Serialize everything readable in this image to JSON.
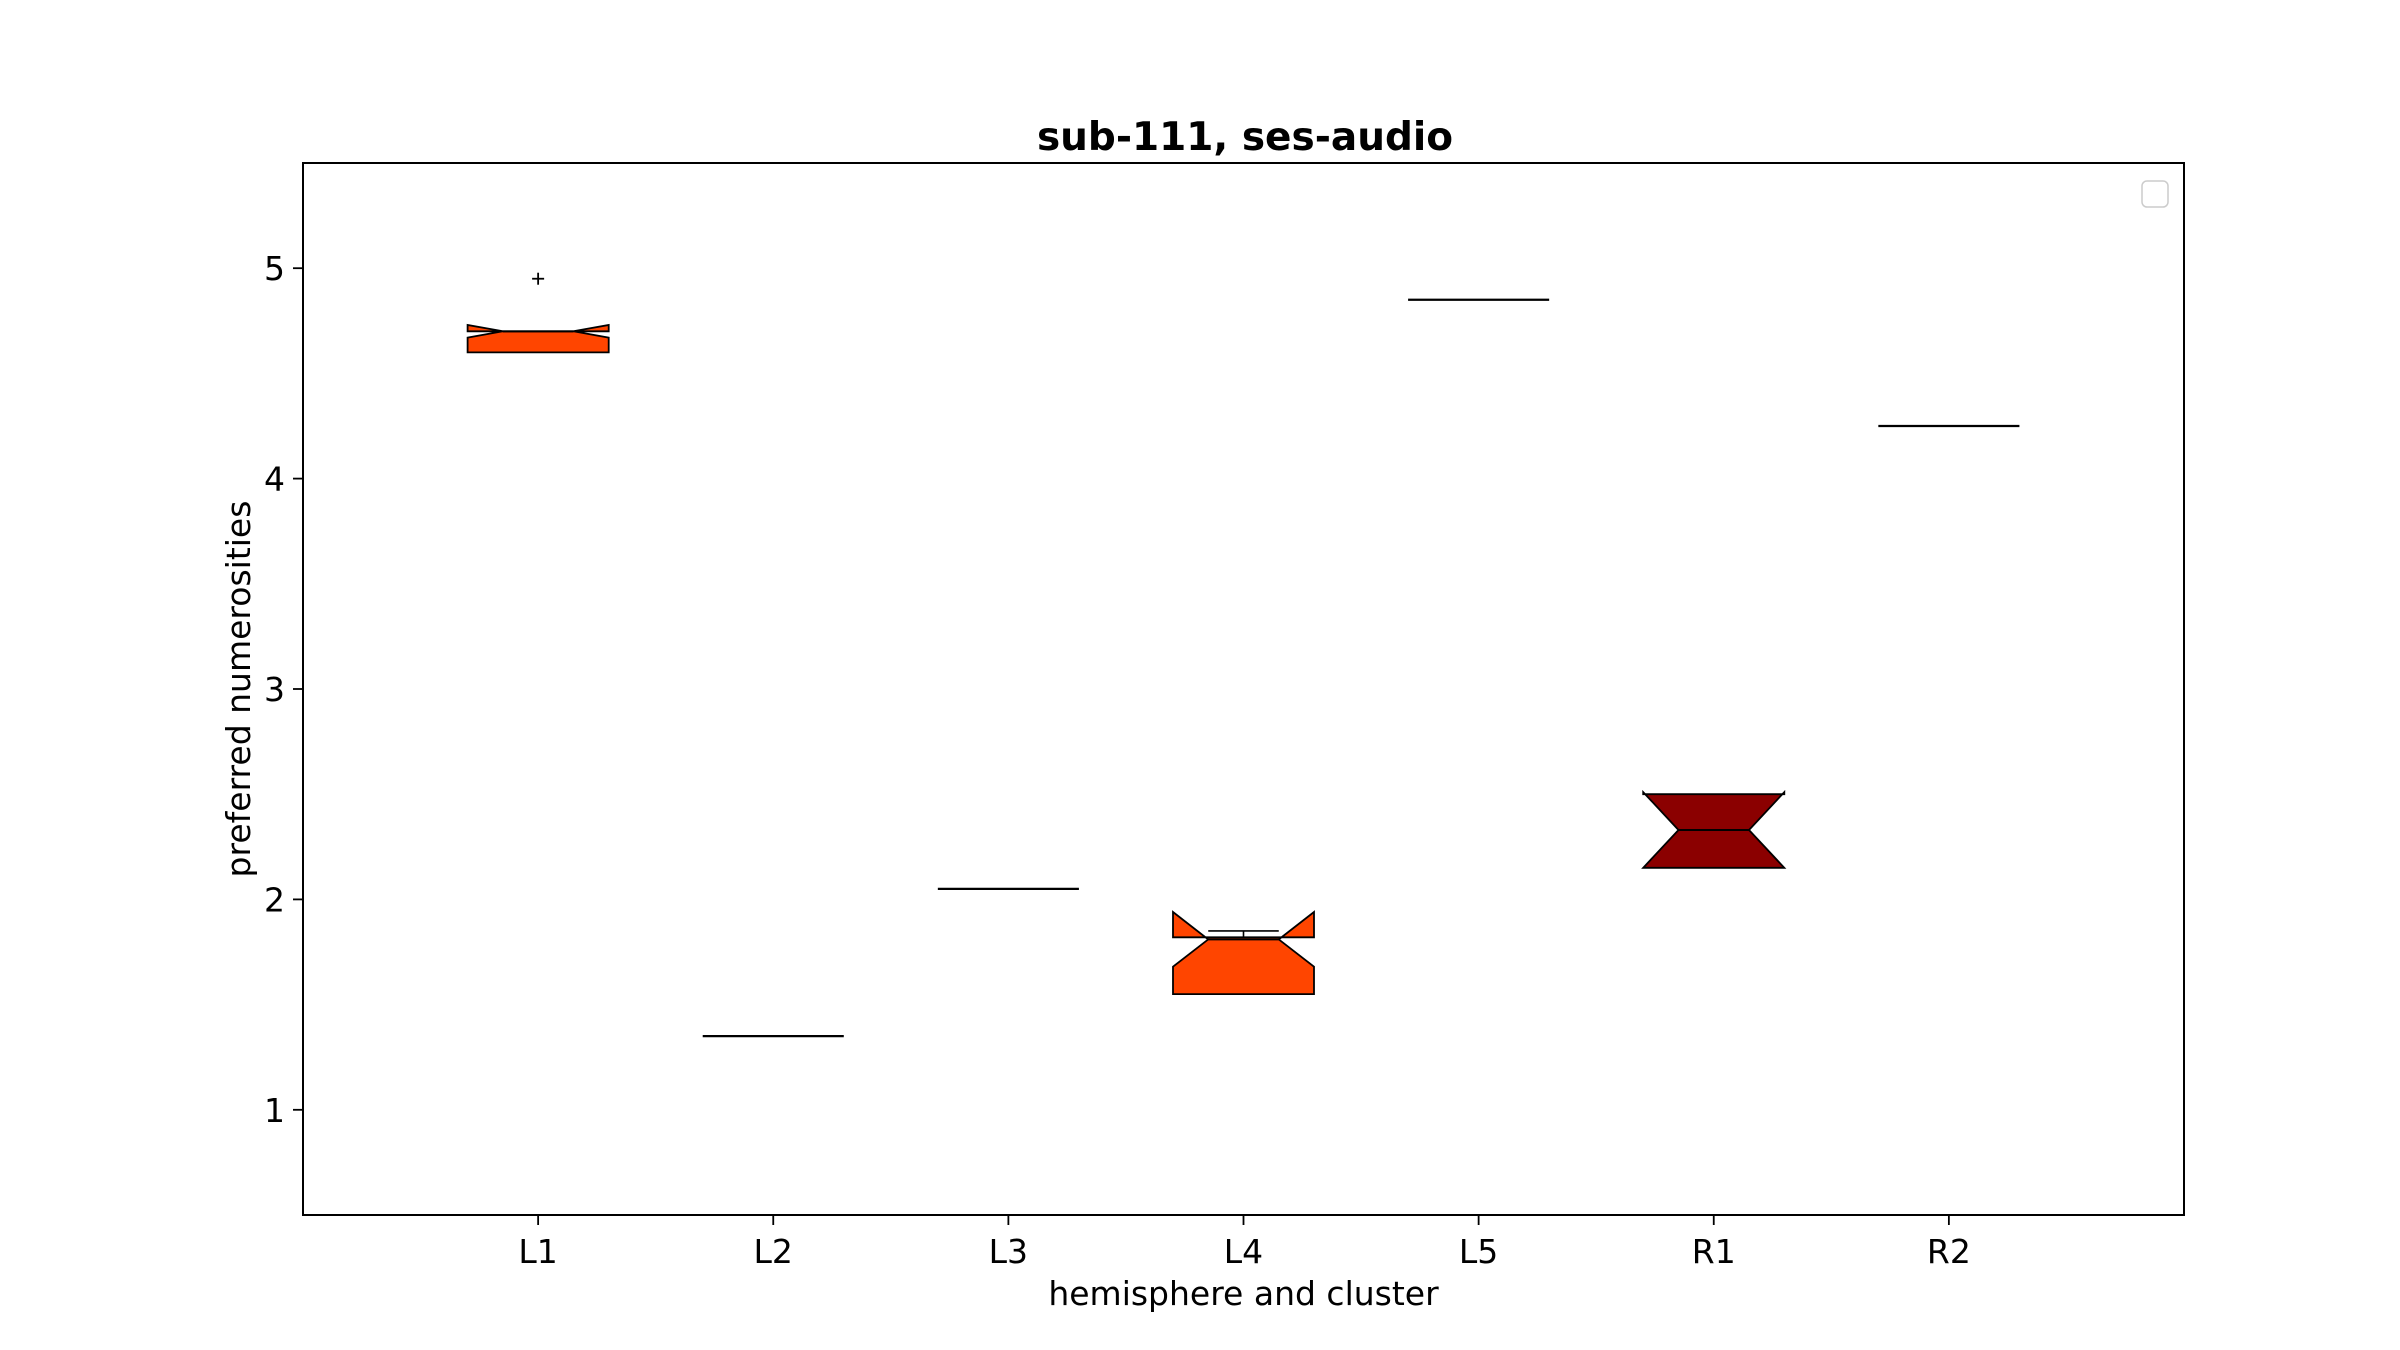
{
  "chart_data": {
    "type": "box",
    "title": "sub-111, ses-audio",
    "xlabel": "hemisphere and cluster",
    "ylabel": "preferred numerosities",
    "categories": [
      "L1",
      "L2",
      "L3",
      "L4",
      "L5",
      "R1",
      "R2"
    ],
    "ylim": [
      0.5,
      5.5
    ],
    "yticks": [
      1,
      2,
      3,
      4,
      5
    ],
    "grid": false,
    "legend": "top-right (empty)",
    "notched": true,
    "boxes": [
      {
        "category": "L1",
        "q1": 4.6,
        "median": 4.7,
        "q3": 4.7,
        "notch_low": 4.67,
        "notch_high": 4.73,
        "whisker_low": 4.6,
        "whisker_high": 4.7,
        "outliers": [
          4.95
        ],
        "color": "#FF4500"
      },
      {
        "category": "L2",
        "q1": 1.35,
        "median": 1.35,
        "q3": 1.35,
        "whisker_low": 1.35,
        "whisker_high": 1.35,
        "outliers": [],
        "color": "#FF4500"
      },
      {
        "category": "L3",
        "q1": 2.05,
        "median": 2.05,
        "q3": 2.05,
        "whisker_low": 2.05,
        "whisker_high": 2.05,
        "outliers": [],
        "color": "#FF4500"
      },
      {
        "category": "L4",
        "q1": 1.55,
        "median": 1.81,
        "q3": 1.82,
        "notch_low": 1.68,
        "notch_high": 1.94,
        "whisker_low": 1.55,
        "whisker_high": 1.85,
        "outliers": [],
        "color": "#FF4500"
      },
      {
        "category": "L5",
        "q1": 4.85,
        "median": 4.85,
        "q3": 4.85,
        "whisker_low": 4.85,
        "whisker_high": 4.85,
        "outliers": [],
        "color": "#FF4500"
      },
      {
        "category": "R1",
        "q1": 2.15,
        "median": 2.33,
        "q3": 2.5,
        "notch_low": 2.15,
        "notch_high": 2.51,
        "whisker_low": 2.15,
        "whisker_high": 2.5,
        "outliers": [],
        "color": "#8B0000"
      },
      {
        "category": "R2",
        "q1": 4.25,
        "median": 4.25,
        "q3": 4.25,
        "whisker_low": 4.25,
        "whisker_high": 4.25,
        "outliers": [],
        "color": "#FF4500"
      }
    ]
  }
}
